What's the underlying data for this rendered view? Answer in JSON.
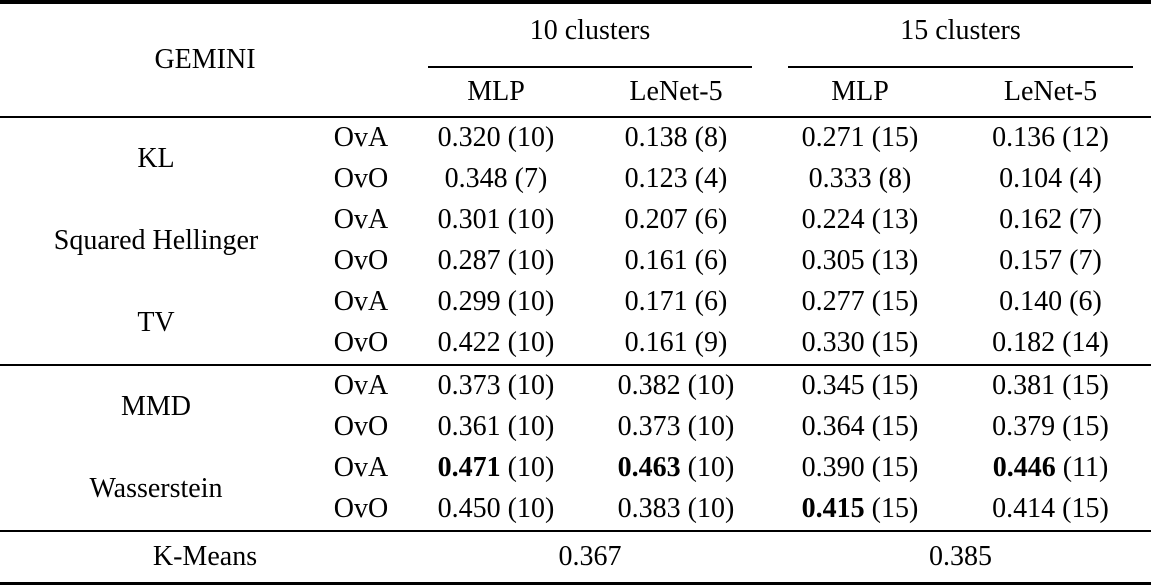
{
  "table": {
    "corner_label": "GEMINI",
    "col_groups": [
      {
        "label": "10 clusters",
        "cols": [
          "MLP",
          "LeNet-5"
        ]
      },
      {
        "label": "15 clusters",
        "cols": [
          "MLP",
          "LeNet-5"
        ]
      }
    ],
    "groups": [
      {
        "name": "KL",
        "section_start": false,
        "rows": [
          {
            "mode": "OvA",
            "values": [
              {
                "score": "0.320",
                "runs": "(10)",
                "bold": false
              },
              {
                "score": "0.138",
                "runs": "(8)",
                "bold": false
              },
              {
                "score": "0.271",
                "runs": "(15)",
                "bold": false
              },
              {
                "score": "0.136",
                "runs": "(12)",
                "bold": false
              }
            ]
          },
          {
            "mode": "OvO",
            "values": [
              {
                "score": "0.348",
                "runs": "(7)",
                "bold": false
              },
              {
                "score": "0.123",
                "runs": "(4)",
                "bold": false
              },
              {
                "score": "0.333",
                "runs": "(8)",
                "bold": false
              },
              {
                "score": "0.104",
                "runs": "(4)",
                "bold": false
              }
            ]
          }
        ]
      },
      {
        "name": "Squared Hellinger",
        "section_start": false,
        "rows": [
          {
            "mode": "OvA",
            "values": [
              {
                "score": "0.301",
                "runs": "(10)",
                "bold": false
              },
              {
                "score": "0.207",
                "runs": "(6)",
                "bold": false
              },
              {
                "score": "0.224",
                "runs": "(13)",
                "bold": false
              },
              {
                "score": "0.162",
                "runs": "(7)",
                "bold": false
              }
            ]
          },
          {
            "mode": "OvO",
            "values": [
              {
                "score": "0.287",
                "runs": "(10)",
                "bold": false
              },
              {
                "score": "0.161",
                "runs": "(6)",
                "bold": false
              },
              {
                "score": "0.305",
                "runs": "(13)",
                "bold": false
              },
              {
                "score": "0.157",
                "runs": "(7)",
                "bold": false
              }
            ]
          }
        ]
      },
      {
        "name": "TV",
        "section_start": false,
        "rows": [
          {
            "mode": "OvA",
            "values": [
              {
                "score": "0.299",
                "runs": "(10)",
                "bold": false
              },
              {
                "score": "0.171",
                "runs": "(6)",
                "bold": false
              },
              {
                "score": "0.277",
                "runs": "(15)",
                "bold": false
              },
              {
                "score": "0.140",
                "runs": "(6)",
                "bold": false
              }
            ]
          },
          {
            "mode": "OvO",
            "values": [
              {
                "score": "0.422",
                "runs": "(10)",
                "bold": false
              },
              {
                "score": "0.161",
                "runs": "(9)",
                "bold": false
              },
              {
                "score": "0.330",
                "runs": "(15)",
                "bold": false
              },
              {
                "score": "0.182",
                "runs": "(14)",
                "bold": false
              }
            ]
          }
        ]
      },
      {
        "name": "MMD",
        "section_start": true,
        "rows": [
          {
            "mode": "OvA",
            "values": [
              {
                "score": "0.373",
                "runs": "(10)",
                "bold": false
              },
              {
                "score": "0.382",
                "runs": "(10)",
                "bold": false
              },
              {
                "score": "0.345",
                "runs": "(15)",
                "bold": false
              },
              {
                "score": "0.381",
                "runs": "(15)",
                "bold": false
              }
            ]
          },
          {
            "mode": "OvO",
            "values": [
              {
                "score": "0.361",
                "runs": "(10)",
                "bold": false
              },
              {
                "score": "0.373",
                "runs": "(10)",
                "bold": false
              },
              {
                "score": "0.364",
                "runs": "(15)",
                "bold": false
              },
              {
                "score": "0.379",
                "runs": "(15)",
                "bold": false
              }
            ]
          }
        ]
      },
      {
        "name": "Wasserstein",
        "section_start": false,
        "rows": [
          {
            "mode": "OvA",
            "values": [
              {
                "score": "0.471",
                "runs": "(10)",
                "bold": true
              },
              {
                "score": "0.463",
                "runs": "(10)",
                "bold": true
              },
              {
                "score": "0.390",
                "runs": "(15)",
                "bold": false
              },
              {
                "score": "0.446",
                "runs": "(11)",
                "bold": true
              }
            ]
          },
          {
            "mode": "OvO",
            "values": [
              {
                "score": "0.450",
                "runs": "(10)",
                "bold": false
              },
              {
                "score": "0.383",
                "runs": "(10)",
                "bold": false
              },
              {
                "score": "0.415",
                "runs": "(15)",
                "bold": true
              },
              {
                "score": "0.414",
                "runs": "(15)",
                "bold": false
              }
            ]
          }
        ]
      }
    ],
    "footer": {
      "label": "K-Means",
      "values": [
        "0.367",
        "0.385"
      ]
    },
    "colors": {
      "rule": "#000000",
      "text": "#000000",
      "background": "#ffffff"
    }
  }
}
